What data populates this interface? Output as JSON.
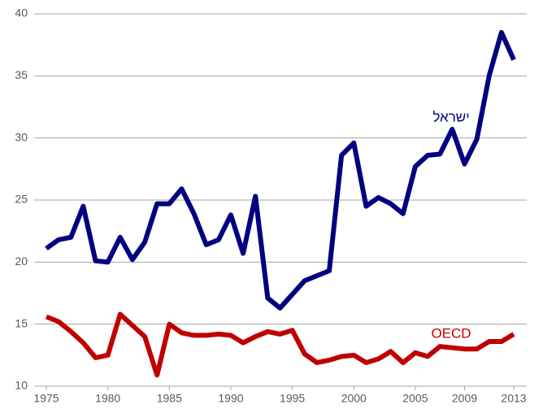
{
  "chart_data": {
    "type": "line",
    "x": [
      1975,
      1976,
      1977,
      1978,
      1979,
      1980,
      1981,
      1982,
      1983,
      1984,
      1985,
      1986,
      1987,
      1988,
      1989,
      1990,
      1991,
      1992,
      1993,
      1994,
      1995,
      1996,
      1997,
      1998,
      1999,
      2000,
      2001,
      2002,
      2003,
      2004,
      2005,
      2006,
      2007,
      2008,
      2009,
      2010,
      2011,
      2012,
      2013
    ],
    "series": [
      {
        "name": "ישראל",
        "color": "#000080",
        "values": [
          21.1,
          21.8,
          22.0,
          24.5,
          20.1,
          20.0,
          22.0,
          20.2,
          21.6,
          24.7,
          24.7,
          25.9,
          23.9,
          21.4,
          21.8,
          23.8,
          20.7,
          25.3,
          17.1,
          16.3,
          17.4,
          18.5,
          18.9,
          19.3,
          28.6,
          29.6,
          24.5,
          25.2,
          24.7,
          23.9,
          27.7,
          28.6,
          28.7,
          30.7,
          27.9,
          29.9,
          35.0,
          38.5,
          36.3
        ]
      },
      {
        "name": "OECD",
        "color": "#c00000",
        "values": [
          15.6,
          15.2,
          14.4,
          13.5,
          12.3,
          12.5,
          15.8,
          14.9,
          14.0,
          10.9,
          15.0,
          14.3,
          14.1,
          14.1,
          14.2,
          14.1,
          13.5,
          14.0,
          14.4,
          14.2,
          14.5,
          12.6,
          11.9,
          12.1,
          12.4,
          12.5,
          11.9,
          12.2,
          12.8,
          11.9,
          12.7,
          12.4,
          13.2,
          13.1,
          13.0,
          13.0,
          13.6,
          13.6,
          14.2
        ]
      }
    ],
    "xlim": [
      1975,
      2013
    ],
    "xticks": [
      1975,
      1980,
      1985,
      1990,
      1995,
      2000,
      2005,
      2009,
      2013
    ],
    "ylim": [
      10,
      40
    ],
    "yticks": [
      10,
      15,
      20,
      25,
      30,
      35,
      40
    ],
    "grid": true
  }
}
